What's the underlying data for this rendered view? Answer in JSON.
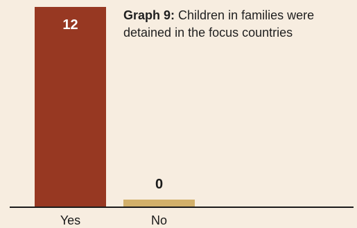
{
  "chart_data": {
    "type": "bar",
    "title_lead": "Graph 9:",
    "title": "Children in families were detained in the focus countries",
    "categories": [
      "Yes",
      "No"
    ],
    "values": [
      12,
      0
    ],
    "colors": [
      "#973822",
      "#d2b06a"
    ],
    "axis_color": "#1a1a1a",
    "label_colors": [
      "#ffffff",
      "#1a1a1a"
    ],
    "ylim": [
      0,
      12
    ],
    "grid": false,
    "legend": "none"
  }
}
